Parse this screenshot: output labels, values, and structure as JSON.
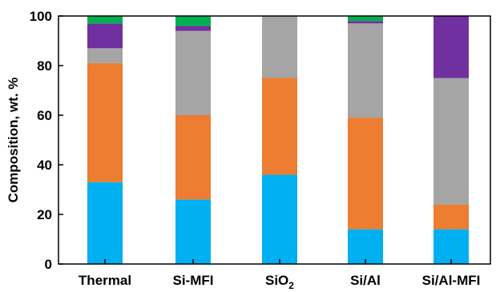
{
  "chart_data": {
    "type": "bar",
    "stacked": true,
    "ylabel": "Composition, wt. %",
    "xlabel": "",
    "ylim": [
      0,
      100
    ],
    "yticks": [
      "0",
      "20",
      "40",
      "60",
      "80",
      "100"
    ],
    "categories": [
      {
        "text": "Thermal"
      },
      {
        "text": "Si-MFI"
      },
      {
        "text": "SiO",
        "sub": "2"
      },
      {
        "text": "Si/Al"
      },
      {
        "text": "Si/Al-MFI"
      }
    ],
    "series": [
      {
        "color": "#00b0f0",
        "values": [
          33,
          26,
          36,
          14,
          14
        ]
      },
      {
        "color": "#ed7d31",
        "values": [
          48,
          34,
          39,
          45,
          10
        ]
      },
      {
        "color": "#a5a5a5",
        "values": [
          6,
          34,
          25,
          38,
          51
        ]
      },
      {
        "color": "#7030a0",
        "values": [
          10,
          2,
          0,
          1,
          25
        ]
      },
      {
        "color": "#00b050",
        "values": [
          3,
          4,
          0,
          2,
          0
        ]
      }
    ],
    "grid": false,
    "legend": "none"
  }
}
